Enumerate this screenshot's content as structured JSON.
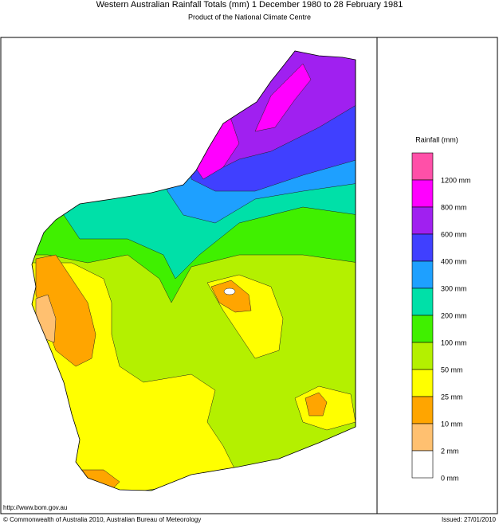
{
  "header": {
    "title": "Western Australian Rainfall Totals (mm) 1 December 1980 to 28 February 1981",
    "subtitle": "Product of the National Climate Centre"
  },
  "legend": {
    "title": "Rainfall (mm)",
    "items": [
      {
        "color": "#ff50a8",
        "label": "1200 mm"
      },
      {
        "color": "#ff00ff",
        "label": "800 mm"
      },
      {
        "color": "#a020f0",
        "label": "600 mm"
      },
      {
        "color": "#4040ff",
        "label": "400 mm"
      },
      {
        "color": "#1ea0ff",
        "label": "300 mm"
      },
      {
        "color": "#00e0a8",
        "label": "200 mm"
      },
      {
        "color": "#40f000",
        "label": "100 mm"
      },
      {
        "color": "#b4f000",
        "label": "50 mm"
      },
      {
        "color": "#ffff00",
        "label": "25 mm"
      },
      {
        "color": "#ffa500",
        "label": "10 mm"
      },
      {
        "color": "#ffc070",
        "label": "2 mm"
      },
      {
        "color": "#ffffff",
        "label": "0 mm"
      }
    ]
  },
  "footer": {
    "url": "http://www.bom.gov.au",
    "copyright": "© Commonwealth of Australia 2010, Australian Bureau of Meteorology",
    "issued": "Issued: 27/01/2010"
  }
}
